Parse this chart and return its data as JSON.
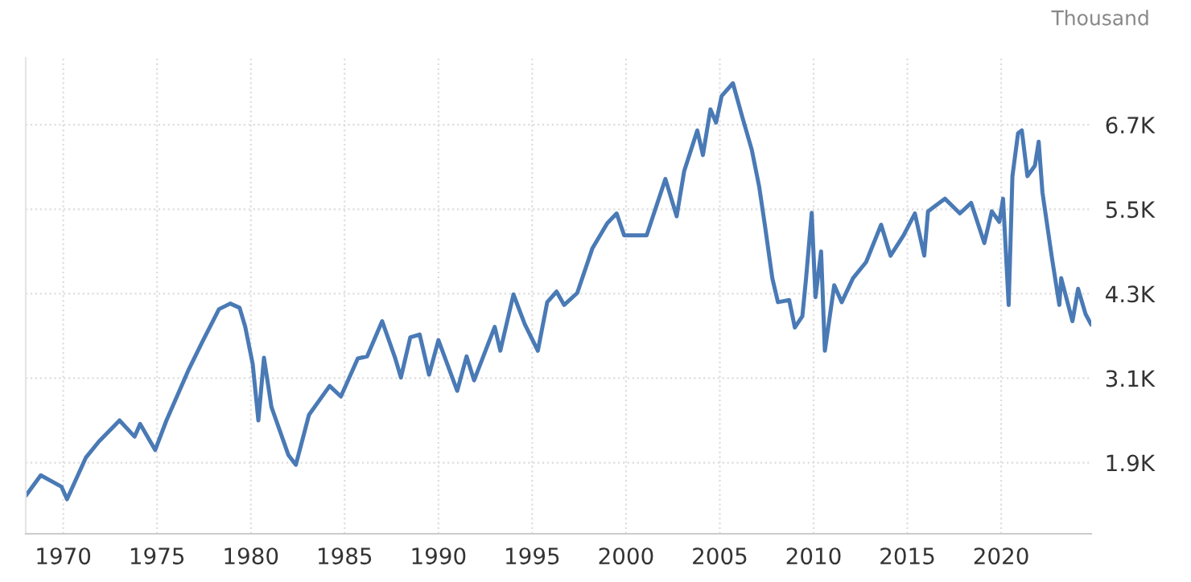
{
  "chart_data": {
    "type": "line",
    "ylabel": "Thousand",
    "x": [
      1968.0,
      1968.8,
      1969.9,
      1970.2,
      1971.2,
      1971.9,
      1973.0,
      1973.8,
      1974.1,
      1974.9,
      1975.5,
      1976.7,
      1977.4,
      1978.3,
      1978.9,
      1979.4,
      1979.7,
      1980.1,
      1980.4,
      1980.7,
      1981.1,
      1982.0,
      1982.4,
      1983.1,
      1984.2,
      1984.8,
      1985.7,
      1986.2,
      1987.0,
      1987.7,
      1988.0,
      1988.5,
      1989.0,
      1989.5,
      1990.0,
      1991.0,
      1991.5,
      1991.9,
      1993.0,
      1993.3,
      1994.0,
      1994.6,
      1995.3,
      1995.8,
      1996.3,
      1996.7,
      1997.4,
      1998.2,
      1999.0,
      1999.5,
      1999.9,
      2001.1,
      2002.1,
      2002.7,
      2003.1,
      2003.8,
      2004.1,
      2004.5,
      2004.8,
      2005.1,
      2005.7,
      2006.2,
      2006.7,
      2007.1,
      2007.4,
      2007.8,
      2008.1,
      2008.7,
      2009.0,
      2009.4,
      2009.6,
      2009.9,
      2010.1,
      2010.4,
      2010.6,
      2011.1,
      2011.5,
      2012.1,
      2012.8,
      2013.6,
      2014.1,
      2014.8,
      2015.4,
      2015.9,
      2016.1,
      2017.0,
      2017.8,
      2018.4,
      2019.1,
      2019.5,
      2019.9,
      2020.1,
      2020.4,
      2020.6,
      2020.9,
      2021.1,
      2021.4,
      2021.8,
      2022.0,
      2022.2,
      2022.7,
      2023.1,
      2023.2,
      2023.8,
      2024.1,
      2024.5,
      2024.8
    ],
    "series": [
      {
        "color": "#4a7ab5",
        "values": [
          1430,
          1720,
          1560,
          1380,
          1970,
          2200,
          2500,
          2270,
          2450,
          2080,
          2500,
          3230,
          3610,
          4080,
          4160,
          4100,
          3830,
          3300,
          2500,
          3390,
          2690,
          2010,
          1870,
          2580,
          2990,
          2840,
          3380,
          3410,
          3910,
          3380,
          3110,
          3680,
          3720,
          3150,
          3640,
          2920,
          3410,
          3070,
          3830,
          3490,
          4290,
          3870,
          3490,
          4180,
          4330,
          4140,
          4310,
          4940,
          5300,
          5440,
          5130,
          5130,
          5930,
          5400,
          6040,
          6620,
          6270,
          6920,
          6730,
          7110,
          7290,
          6810,
          6350,
          5820,
          5280,
          4520,
          4180,
          4210,
          3820,
          3980,
          4520,
          5450,
          4250,
          4900,
          3490,
          4420,
          4180,
          4520,
          4750,
          5280,
          4840,
          5130,
          5440,
          4840,
          5470,
          5650,
          5440,
          5590,
          5020,
          5470,
          5320,
          5650,
          4140,
          5970,
          6580,
          6620,
          5970,
          6120,
          6460,
          5740,
          4820,
          4140,
          4520,
          3910,
          4370,
          4010,
          3860
        ]
      }
    ],
    "xlim": [
      1968.0,
      2024.8
    ],
    "xticks": [
      1970,
      1975,
      1980,
      1985,
      1990,
      1995,
      2000,
      2005,
      2010,
      2015,
      2020
    ],
    "ylim": [
      890,
      7650
    ],
    "yticks": [
      {
        "value": 1900,
        "label": "1.9K"
      },
      {
        "value": 3100,
        "label": "3.1K"
      },
      {
        "value": 4300,
        "label": "4.3K"
      },
      {
        "value": 5500,
        "label": "5.5K"
      },
      {
        "value": 6700,
        "label": "6.7K"
      }
    ],
    "grid": true,
    "legend": false
  }
}
